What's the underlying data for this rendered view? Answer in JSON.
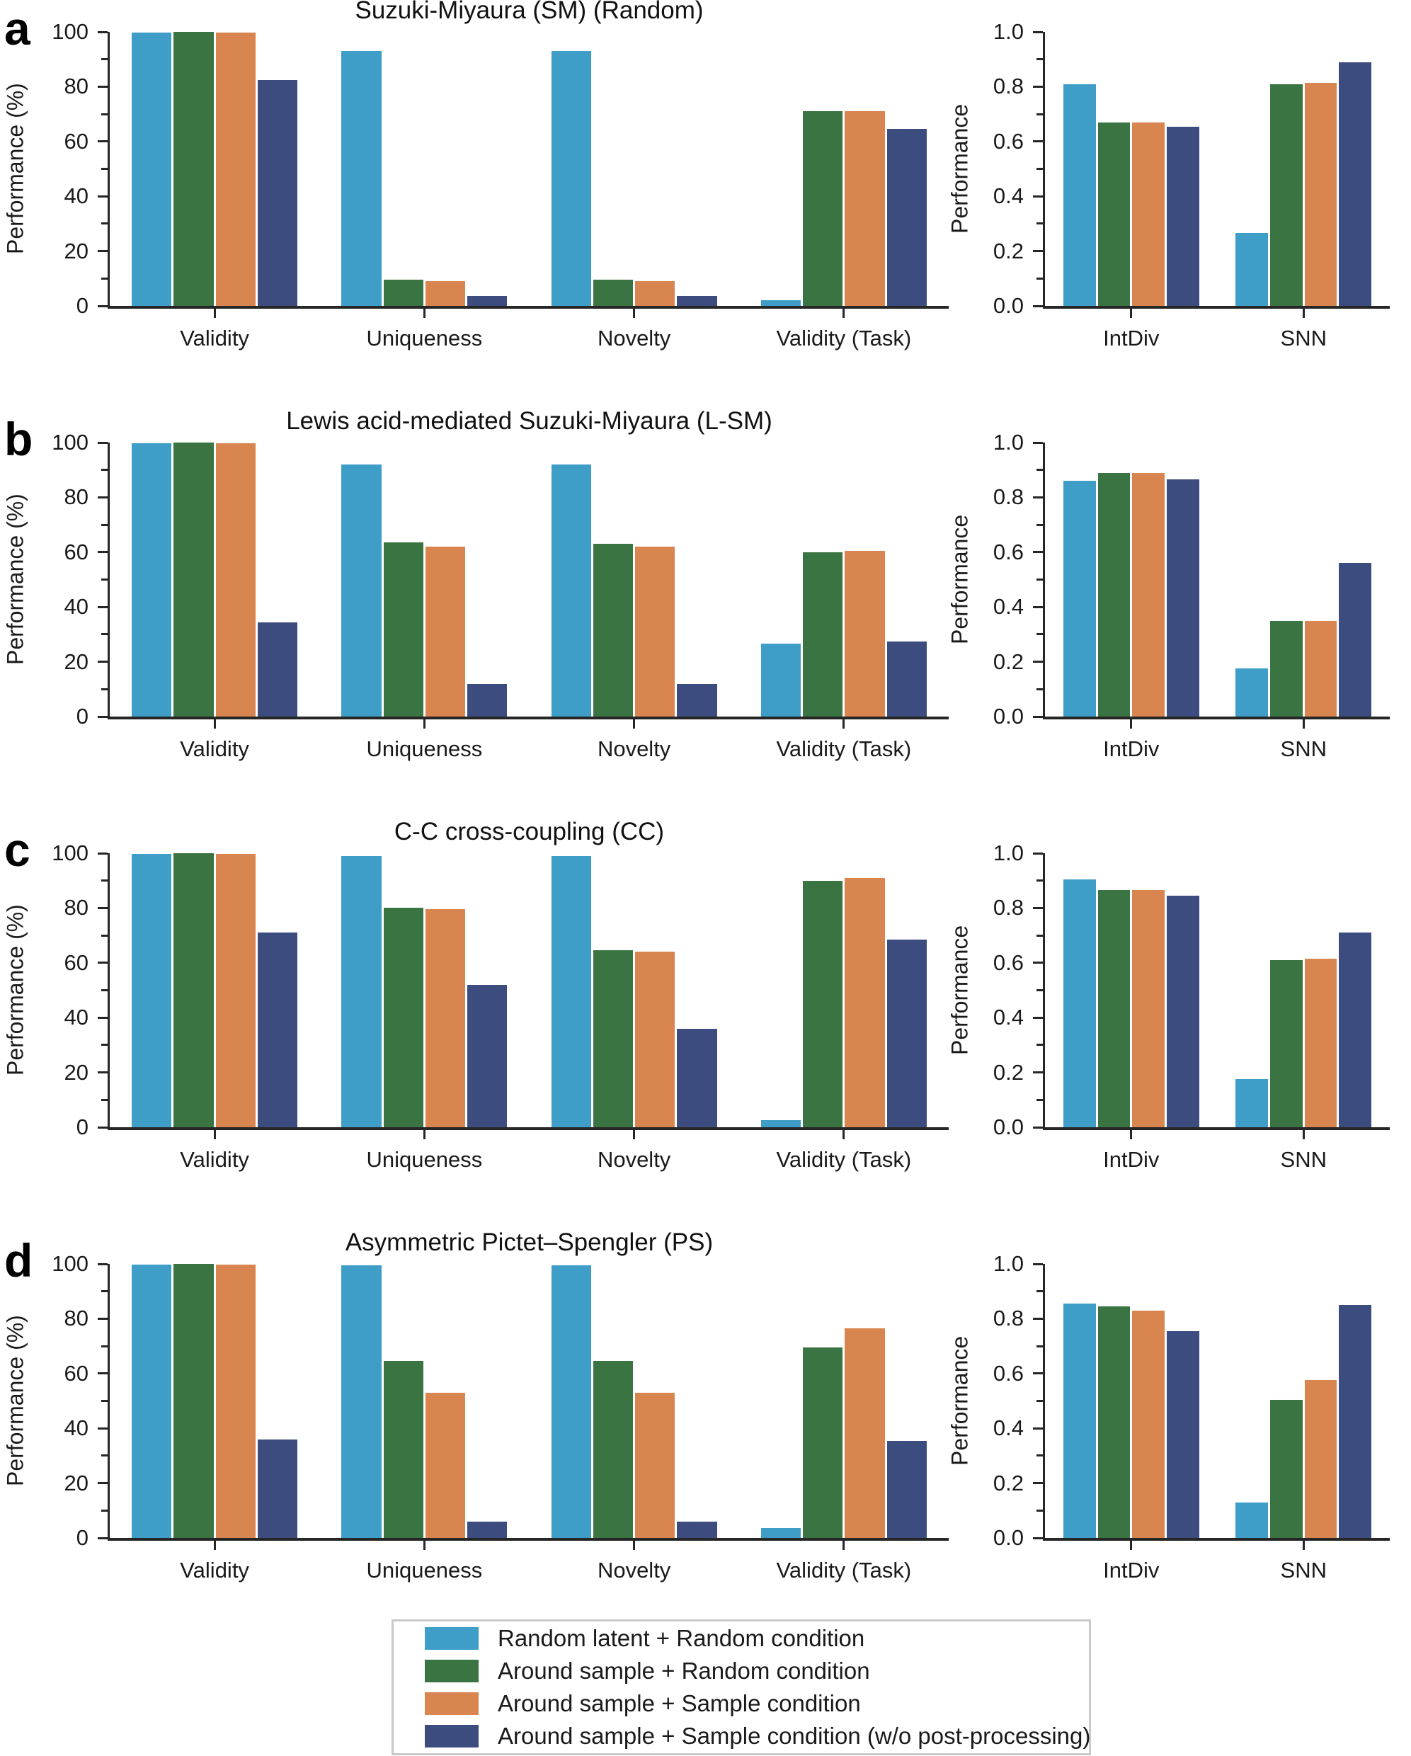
{
  "figure": {
    "panels": [
      {
        "letter": "a"
      },
      {
        "letter": "b"
      },
      {
        "letter": "c"
      },
      {
        "letter": "d"
      }
    ],
    "legend": {
      "entries": [
        {
          "label": "Random latent + Random condition",
          "color": "#3F9EC7"
        },
        {
          "label": "Around sample + Random condition",
          "color": "#3A7442"
        },
        {
          "label": "Around sample + Sample condition",
          "color": "#D9854F"
        },
        {
          "label": "Around sample + Sample condition (w/o post-processing)",
          "color": "#3C4C7E"
        }
      ]
    }
  },
  "chart_data": [
    {
      "panel": "a",
      "type": "bar",
      "title": "Suzuki-Miyaura (SM) (Random)",
      "ylabel": "Performance (%)",
      "ylim": [
        0,
        100
      ],
      "yticks": [
        0,
        20,
        40,
        60,
        80,
        100
      ],
      "ytick_labels": [
        "0",
        "20",
        "40",
        "60",
        "80",
        "100"
      ],
      "minor_step": 10,
      "categories": [
        "Validity",
        "Uniqueness",
        "Novelty",
        "Validity (Task)"
      ],
      "series": [
        {
          "name": "Random latent + Random condition",
          "color": "#3F9EC7",
          "values": [
            99.7,
            93,
            93,
            2
          ]
        },
        {
          "name": "Around sample + Random condition",
          "color": "#3A7442",
          "values": [
            99.9,
            9.5,
            9.5,
            71
          ]
        },
        {
          "name": "Around sample + Sample condition",
          "color": "#D9854F",
          "values": [
            99.7,
            9,
            9,
            71
          ]
        },
        {
          "name": "Around sample + Sample condition (w/o post-processing)",
          "color": "#3C4C7E",
          "values": [
            82.5,
            3.5,
            3.5,
            64.5
          ]
        }
      ]
    },
    {
      "panel": "a",
      "type": "bar",
      "title": "",
      "ylabel": "Performance",
      "ylim": [
        0,
        1
      ],
      "yticks": [
        0,
        0.2,
        0.4,
        0.6,
        0.8,
        1.0
      ],
      "ytick_labels": [
        "0.0",
        "0.2",
        "0.4",
        "0.6",
        "0.8",
        "1.0"
      ],
      "minor_step": 0.1,
      "categories": [
        "IntDiv",
        "SNN"
      ],
      "series": [
        {
          "name": "Random latent + Random condition",
          "color": "#3F9EC7",
          "values": [
            0.81,
            0.265
          ]
        },
        {
          "name": "Around sample + Random condition",
          "color": "#3A7442",
          "values": [
            0.67,
            0.81
          ]
        },
        {
          "name": "Around sample + Sample condition",
          "color": "#D9854F",
          "values": [
            0.67,
            0.815
          ]
        },
        {
          "name": "Around sample + Sample condition (w/o post-processing)",
          "color": "#3C4C7E",
          "values": [
            0.655,
            0.89
          ]
        }
      ]
    },
    {
      "panel": "b",
      "type": "bar",
      "title": "Lewis acid-mediated Suzuki-Miyaura (L-SM)",
      "ylabel": "Performance (%)",
      "ylim": [
        0,
        100
      ],
      "yticks": [
        0,
        20,
        40,
        60,
        80,
        100
      ],
      "ytick_labels": [
        "0",
        "20",
        "40",
        "60",
        "80",
        "100"
      ],
      "minor_step": 10,
      "categories": [
        "Validity",
        "Uniqueness",
        "Novelty",
        "Validity (Task)"
      ],
      "series": [
        {
          "name": "Random latent + Random condition",
          "color": "#3F9EC7",
          "values": [
            99.7,
            92,
            92,
            26.5
          ]
        },
        {
          "name": "Around sample + Random condition",
          "color": "#3A7442",
          "values": [
            99.9,
            63.5,
            63,
            60
          ]
        },
        {
          "name": "Around sample + Sample condition",
          "color": "#D9854F",
          "values": [
            99.7,
            62,
            62,
            60.5
          ]
        },
        {
          "name": "Around sample + Sample condition (w/o post-processing)",
          "color": "#3C4C7E",
          "values": [
            34.5,
            12,
            12,
            27.5
          ]
        }
      ]
    },
    {
      "panel": "b",
      "type": "bar",
      "title": "",
      "ylabel": "Performance",
      "ylim": [
        0,
        1
      ],
      "yticks": [
        0,
        0.2,
        0.4,
        0.6,
        0.8,
        1.0
      ],
      "ytick_labels": [
        "0.0",
        "0.2",
        "0.4",
        "0.6",
        "0.8",
        "1.0"
      ],
      "minor_step": 0.1,
      "categories": [
        "IntDiv",
        "SNN"
      ],
      "series": [
        {
          "name": "Random latent + Random condition",
          "color": "#3F9EC7",
          "values": [
            0.86,
            0.175
          ]
        },
        {
          "name": "Around sample + Random condition",
          "color": "#3A7442",
          "values": [
            0.89,
            0.35
          ]
        },
        {
          "name": "Around sample + Sample condition",
          "color": "#D9854F",
          "values": [
            0.89,
            0.35
          ]
        },
        {
          "name": "Around sample + Sample condition (w/o post-processing)",
          "color": "#3C4C7E",
          "values": [
            0.865,
            0.56
          ]
        }
      ]
    },
    {
      "panel": "c",
      "type": "bar",
      "title": "C-C cross-coupling (CC)",
      "ylabel": "Performance (%)",
      "ylim": [
        0,
        100
      ],
      "yticks": [
        0,
        20,
        40,
        60,
        80,
        100
      ],
      "ytick_labels": [
        "0",
        "20",
        "40",
        "60",
        "80",
        "100"
      ],
      "minor_step": 10,
      "categories": [
        "Validity",
        "Uniqueness",
        "Novelty",
        "Validity (Task)"
      ],
      "series": [
        {
          "name": "Random latent + Random condition",
          "color": "#3F9EC7",
          "values": [
            99.7,
            99,
            99,
            2.5
          ]
        },
        {
          "name": "Around sample + Random condition",
          "color": "#3A7442",
          "values": [
            99.9,
            80,
            64.5,
            90
          ]
        },
        {
          "name": "Around sample + Sample condition",
          "color": "#D9854F",
          "values": [
            99.7,
            79.5,
            64,
            91
          ]
        },
        {
          "name": "Around sample + Sample condition (w/o post-processing)",
          "color": "#3C4C7E",
          "values": [
            71,
            52,
            36,
            68.5
          ]
        }
      ]
    },
    {
      "panel": "c",
      "type": "bar",
      "title": "",
      "ylabel": "Performance",
      "ylim": [
        0,
        1
      ],
      "yticks": [
        0,
        0.2,
        0.4,
        0.6,
        0.8,
        1.0
      ],
      "ytick_labels": [
        "0.0",
        "0.2",
        "0.4",
        "0.6",
        "0.8",
        "1.0"
      ],
      "minor_step": 0.1,
      "categories": [
        "IntDiv",
        "SNN"
      ],
      "series": [
        {
          "name": "Random latent + Random condition",
          "color": "#3F9EC7",
          "values": [
            0.905,
            0.175
          ]
        },
        {
          "name": "Around sample + Random condition",
          "color": "#3A7442",
          "values": [
            0.865,
            0.61
          ]
        },
        {
          "name": "Around sample + Sample condition",
          "color": "#D9854F",
          "values": [
            0.865,
            0.615
          ]
        },
        {
          "name": "Around sample + Sample condition (w/o post-processing)",
          "color": "#3C4C7E",
          "values": [
            0.845,
            0.71
          ]
        }
      ]
    },
    {
      "panel": "d",
      "type": "bar",
      "title": "Asymmetric Pictet–Spengler (PS)",
      "ylabel": "Performance (%)",
      "ylim": [
        0,
        100
      ],
      "yticks": [
        0,
        20,
        40,
        60,
        80,
        100
      ],
      "ytick_labels": [
        "0",
        "20",
        "40",
        "60",
        "80",
        "100"
      ],
      "minor_step": 10,
      "categories": [
        "Validity",
        "Uniqueness",
        "Novelty",
        "Validity (Task)"
      ],
      "series": [
        {
          "name": "Random latent + Random condition",
          "color": "#3F9EC7",
          "values": [
            99.8,
            99.5,
            99.5,
            3.5
          ]
        },
        {
          "name": "Around sample + Random condition",
          "color": "#3A7442",
          "values": [
            100,
            64.5,
            64.5,
            69.5
          ]
        },
        {
          "name": "Around sample + Sample condition",
          "color": "#D9854F",
          "values": [
            99.8,
            53,
            53,
            76.5
          ]
        },
        {
          "name": "Around sample + Sample condition (w/o post-processing)",
          "color": "#3C4C7E",
          "values": [
            36,
            6,
            6,
            35.5
          ]
        }
      ]
    },
    {
      "panel": "d",
      "type": "bar",
      "title": "",
      "ylabel": "Performance",
      "ylim": [
        0,
        1
      ],
      "yticks": [
        0,
        0.2,
        0.4,
        0.6,
        0.8,
        1.0
      ],
      "ytick_labels": [
        "0.0",
        "0.2",
        "0.4",
        "0.6",
        "0.8",
        "1.0"
      ],
      "minor_step": 0.1,
      "categories": [
        "IntDiv",
        "SNN"
      ],
      "series": [
        {
          "name": "Random latent + Random condition",
          "color": "#3F9EC7",
          "values": [
            0.855,
            0.13
          ]
        },
        {
          "name": "Around sample + Random condition",
          "color": "#3A7442",
          "values": [
            0.845,
            0.505
          ]
        },
        {
          "name": "Around sample + Sample condition",
          "color": "#D9854F",
          "values": [
            0.83,
            0.575
          ]
        },
        {
          "name": "Around sample + Sample condition (w/o post-processing)",
          "color": "#3C4C7E",
          "values": [
            0.755,
            0.85
          ]
        }
      ]
    }
  ]
}
